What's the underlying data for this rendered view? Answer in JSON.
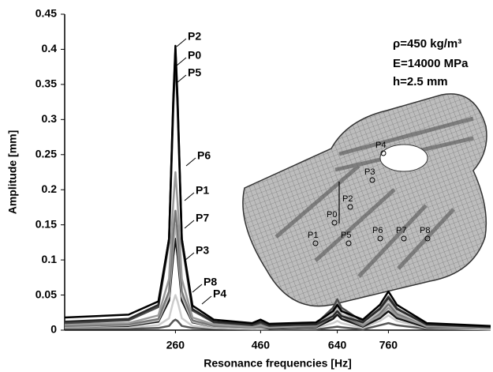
{
  "chart_data": {
    "type": "line",
    "xlabel": "Resonance frequencies [Hz]",
    "ylabel": "Amplitude [mm]",
    "annotations": [
      "ρ=450 kg/m³",
      "E=14000 MPa",
      "h=2.5 mm"
    ],
    "xlim": [
      0,
      1000
    ],
    "xticks": [
      260,
      460,
      640,
      760
    ],
    "ylim": [
      0,
      0.45
    ],
    "yticks": [
      0,
      0.05,
      0.1,
      0.15,
      0.2,
      0.25,
      0.3,
      0.35,
      0.4,
      0.45
    ],
    "x": [
      0,
      150,
      220,
      245,
      255,
      260,
      265,
      275,
      300,
      350,
      440,
      460,
      480,
      590,
      630,
      640,
      650,
      700,
      740,
      760,
      780,
      850,
      1000
    ],
    "series": [
      {
        "name": "P2",
        "color": "#000000",
        "values": [
          0.018,
          0.022,
          0.041,
          0.13,
          0.33,
          0.405,
          0.33,
          0.13,
          0.035,
          0.015,
          0.01,
          0.015,
          0.009,
          0.011,
          0.027,
          0.036,
          0.027,
          0.015,
          0.036,
          0.055,
          0.036,
          0.01,
          0.006
        ]
      },
      {
        "name": "P0",
        "color": "#2a2a2a",
        "values": [
          0.012,
          0.016,
          0.036,
          0.13,
          0.325,
          0.4,
          0.325,
          0.13,
          0.03,
          0.012,
          0.008,
          0.012,
          0.007,
          0.008,
          0.02,
          0.027,
          0.02,
          0.011,
          0.03,
          0.046,
          0.03,
          0.008,
          0.005
        ]
      },
      {
        "name": "P5",
        "color": "#4a4a4a",
        "values": [
          0.01,
          0.014,
          0.033,
          0.125,
          0.315,
          0.39,
          0.315,
          0.125,
          0.028,
          0.011,
          0.007,
          0.01,
          0.006,
          0.009,
          0.032,
          0.044,
          0.032,
          0.012,
          0.031,
          0.048,
          0.031,
          0.008,
          0.004
        ]
      },
      {
        "name": "P6",
        "color": "#9a9a9a",
        "values": [
          0.008,
          0.01,
          0.021,
          0.073,
          0.182,
          0.225,
          0.182,
          0.073,
          0.018,
          0.008,
          0.005,
          0.007,
          0.004,
          0.007,
          0.028,
          0.038,
          0.028,
          0.008,
          0.02,
          0.032,
          0.02,
          0.006,
          0.003
        ]
      },
      {
        "name": "P1",
        "color": "#777777",
        "values": [
          0.006,
          0.008,
          0.016,
          0.055,
          0.138,
          0.17,
          0.138,
          0.055,
          0.014,
          0.006,
          0.004,
          0.005,
          0.003,
          0.005,
          0.02,
          0.027,
          0.02,
          0.006,
          0.023,
          0.037,
          0.023,
          0.005,
          0.003
        ]
      },
      {
        "name": "P7",
        "color": "#bdbdbd",
        "values": [
          0.005,
          0.007,
          0.014,
          0.048,
          0.122,
          0.15,
          0.122,
          0.048,
          0.012,
          0.005,
          0.003,
          0.004,
          0.003,
          0.005,
          0.023,
          0.032,
          0.023,
          0.007,
          0.026,
          0.042,
          0.026,
          0.005,
          0.002
        ]
      },
      {
        "name": "P3",
        "color": "#151515",
        "values": [
          0.005,
          0.006,
          0.012,
          0.042,
          0.106,
          0.13,
          0.106,
          0.042,
          0.011,
          0.005,
          0.003,
          0.004,
          0.002,
          0.004,
          0.016,
          0.022,
          0.016,
          0.005,
          0.017,
          0.027,
          0.017,
          0.004,
          0.002
        ]
      },
      {
        "name": "P8",
        "color": "#cccccc",
        "values": [
          0.004,
          0.004,
          0.007,
          0.017,
          0.041,
          0.05,
          0.041,
          0.017,
          0.006,
          0.003,
          0.002,
          0.002,
          0.002,
          0.003,
          0.01,
          0.013,
          0.01,
          0.003,
          0.013,
          0.021,
          0.013,
          0.003,
          0.001
        ]
      },
      {
        "name": "P4",
        "color": "#555555",
        "values": [
          0.002,
          0.002,
          0.003,
          0.006,
          0.013,
          0.015,
          0.013,
          0.006,
          0.003,
          0.002,
          0.001,
          0.001,
          0.001,
          0.001,
          0.004,
          0.005,
          0.004,
          0.001,
          0.007,
          0.01,
          0.007,
          0.002,
          0.001
        ]
      }
    ]
  }
}
